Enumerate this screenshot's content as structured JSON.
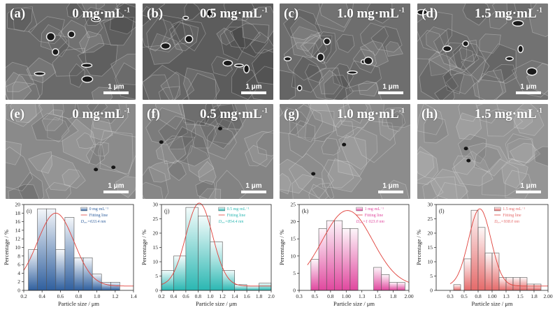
{
  "sem_panels": [
    {
      "label": "(a)",
      "conc": "0 mg·mL",
      "sup": "-1",
      "scale": "1 μm",
      "tone": "#6a6a6a",
      "pores": true
    },
    {
      "label": "(b)",
      "conc": "0.5 mg·mL",
      "sup": "-1",
      "scale": "1 μm",
      "tone": "#5c5c5c",
      "pores": true
    },
    {
      "label": "(c)",
      "conc": "1.0 mg·mL",
      "sup": "-1",
      "scale": "1 μm",
      "tone": "#6e6e6e",
      "pores": true
    },
    {
      "label": "(d)",
      "conc": "1.5 mg·mL",
      "sup": "-1",
      "scale": "1 μm",
      "tone": "#727272",
      "pores": true
    },
    {
      "label": "(e)",
      "conc": "0 mg·mL",
      "sup": "-1",
      "scale": "1 μm",
      "tone": "#8a8a8a",
      "pores": false
    },
    {
      "label": "(f)",
      "conc": "0.5 mg·mL",
      "sup": "-1",
      "scale": "1 μm",
      "tone": "#858585",
      "pores": false
    },
    {
      "label": "(g)",
      "conc": "1.0 mg·mL",
      "sup": "-1",
      "scale": "1 μm",
      "tone": "#8c8c8c",
      "pores": false
    },
    {
      "label": "(h)",
      "conc": "1.5 mg·mL",
      "sup": "-1",
      "scale": "1 μm",
      "tone": "#959595",
      "pores": false
    }
  ],
  "chart_data": [
    {
      "type": "bar",
      "panel": "(i)",
      "color": "#2f5f9e",
      "xlabel": "Particle size / μm",
      "ylabel": "Percentage / %",
      "xlim": [
        0.2,
        1.4
      ],
      "ylim": [
        0,
        20
      ],
      "xticks": [
        0.2,
        0.4,
        0.6,
        0.8,
        1.0,
        1.2,
        1.4
      ],
      "yticks": [
        0,
        2,
        4,
        6,
        8,
        10,
        12,
        14,
        16,
        18,
        20
      ],
      "bin_width": 0.1,
      "x": [
        0.3,
        0.4,
        0.5,
        0.6,
        0.7,
        0.8,
        0.9,
        1.0,
        1.1,
        1.2
      ],
      "values": [
        9.5,
        19,
        19,
        9.5,
        17,
        7.6,
        7.6,
        3.8,
        1.9,
        1.9
      ],
      "fit_mean": 0.55,
      "fit_sigma": 0.2,
      "fit_peak": 17,
      "legend": [
        "0 mg·mL⁻¹",
        "Fitting line",
        "Dₐᵥₑ=633.4 nm"
      ]
    },
    {
      "type": "bar",
      "panel": "(j)",
      "color": "#2ab7b2",
      "xlabel": "Particle size / μm",
      "ylabel": "Percentage / %",
      "xlim": [
        0.2,
        2.0
      ],
      "ylim": [
        0,
        30
      ],
      "xticks": [
        0.2,
        0.4,
        0.6,
        0.8,
        1.0,
        1.2,
        1.4,
        1.6,
        1.8,
        2.0
      ],
      "yticks": [
        0,
        5,
        10,
        15,
        20,
        25,
        30
      ],
      "bin_width": 0.2,
      "x": [
        0.3,
        0.5,
        0.7,
        0.9,
        1.1,
        1.3,
        1.5,
        1.7,
        1.9
      ],
      "values": [
        7,
        12,
        29,
        26,
        17,
        7,
        2,
        1.5,
        2.5
      ],
      "fit_mean": 0.82,
      "fit_sigma": 0.22,
      "fit_peak": 29,
      "legend": [
        "0.5 mg·mL⁻¹",
        "Fitting line",
        "Dₐᵥₑ=854.4 nm"
      ]
    },
    {
      "type": "bar",
      "panel": "(k)",
      "color": "#e0479e",
      "xlabel": "Particle size / μm",
      "ylabel": "Percentage / %",
      "xlim": [
        0.25,
        2.0
      ],
      "ylim": [
        0,
        25
      ],
      "xticks": [
        0.25,
        0.5,
        0.75,
        1.0,
        1.25,
        1.5,
        1.75,
        2.0
      ],
      "yticks": [
        0,
        5,
        10,
        15,
        20,
        25
      ],
      "bin_width": 0.125,
      "x": [
        0.5,
        0.625,
        0.75,
        0.875,
        1.0,
        1.125,
        1.25,
        1.375,
        1.5,
        1.625,
        1.75,
        1.875
      ],
      "values": [
        9,
        18,
        20.3,
        20.3,
        18,
        18,
        0,
        0,
        6.7,
        4.6,
        2.3,
        2.3
      ],
      "fit_mean": 1.02,
      "fit_sigma": 0.4,
      "fit_peak": 22,
      "legend": [
        "1 mg·mL⁻¹",
        "Fitting line",
        "Dₐᵥₑ=1 023.0 nm"
      ]
    },
    {
      "type": "bar",
      "panel": "(l)",
      "color": "#e56a6a",
      "xlabel": "Particle size / μm",
      "ylabel": "Percentage / %",
      "xlim": [
        0.0,
        2.0
      ],
      "ylim": [
        0,
        30
      ],
      "xticks": [
        0.25,
        0.5,
        0.75,
        1.0,
        1.25,
        1.5,
        1.75,
        2.0
      ],
      "yticks": [
        0,
        5,
        10,
        15,
        20,
        25,
        30
      ],
      "bin_width": 0.125,
      "x": [
        0.375,
        0.5625,
        0.6875,
        0.8125,
        0.9375,
        1.0625,
        1.1875,
        1.3125,
        1.4375,
        1.5625,
        1.6875,
        1.8125
      ],
      "values": [
        2,
        11,
        28,
        22,
        13,
        13,
        4.5,
        4.5,
        4.5,
        4.5,
        2.2,
        2.2
      ],
      "fit_mean": 0.78,
      "fit_sigma": 0.2,
      "fit_peak": 27,
      "legend": [
        "1.5 mg·mL⁻¹",
        "Fitting line",
        "Dₐᵥₑ=938.0 nm"
      ]
    }
  ]
}
